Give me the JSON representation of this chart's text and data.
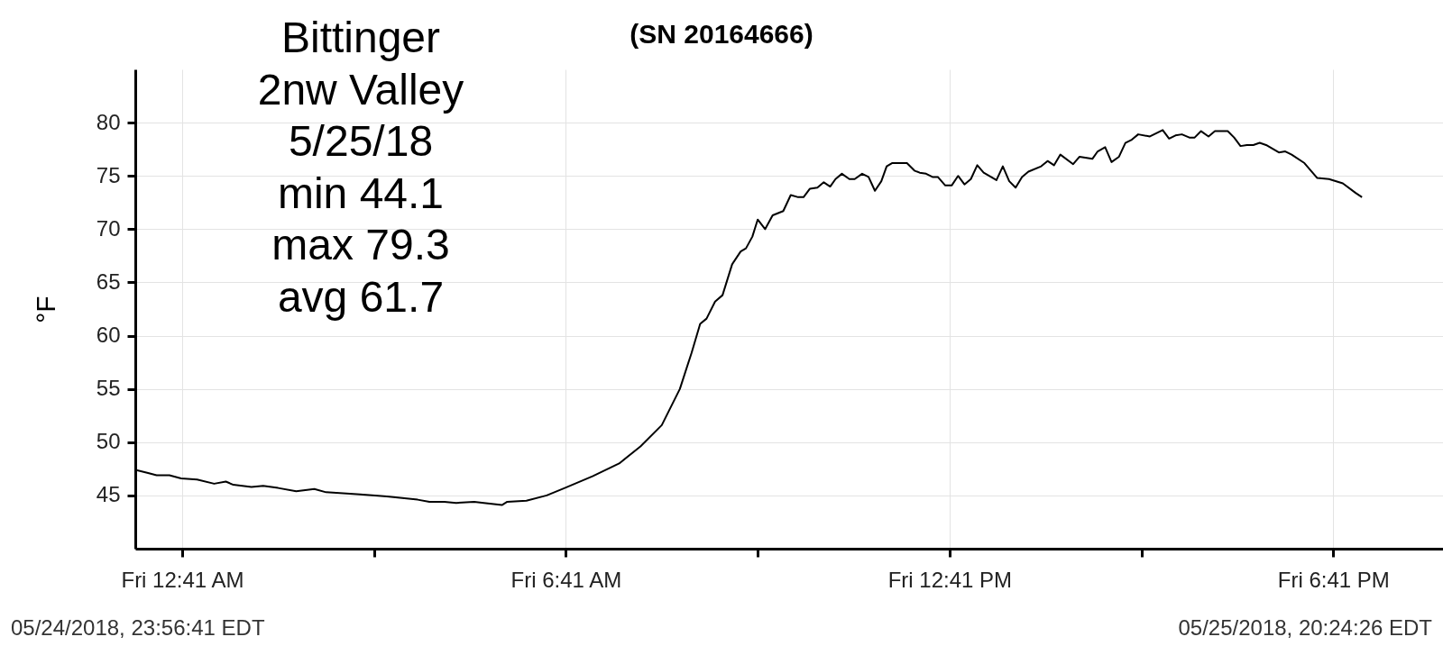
{
  "chart_data": {
    "type": "line",
    "title": "(SN 20164666)",
    "ylabel": "°F",
    "annotations": [
      "Bittinger\n2nw Valley\n5/25/18\nmin 44.1\nmax 79.3\navg 61.7",
      "05/24/2018, 23:56:41 EDT",
      "05/25/2018, 20:24:26 EDT"
    ],
    "x": [
      "2018-05-24T23:57",
      "2018-05-25T00:09",
      "2018-05-25T00:17",
      "2018-05-25T00:29",
      "2018-05-25T00:40",
      "2018-05-25T00:55",
      "2018-05-25T01:11",
      "2018-05-25T01:22",
      "2018-05-25T01:29",
      "2018-05-25T01:46",
      "2018-05-25T01:57",
      "2018-05-25T02:11",
      "2018-05-25T02:28",
      "2018-05-25T02:45",
      "2018-05-25T02:56",
      "2018-05-25T03:28",
      "2018-05-25T03:42",
      "2018-05-25T03:53",
      "2018-05-25T04:22",
      "2018-05-25T04:33",
      "2018-05-25T04:47",
      "2018-05-25T04:58",
      "2018-05-25T05:15",
      "2018-05-25T05:24",
      "2018-05-25T05:41",
      "2018-05-25T05:46",
      "2018-05-25T06:04",
      "2018-05-25T06:23",
      "2018-05-25T06:40",
      "2018-05-25T07:06",
      "2018-05-25T07:31",
      "2018-05-25T07:51",
      "2018-05-25T08:11",
      "2018-05-25T08:28",
      "2018-05-25T08:39",
      "2018-05-25T08:47",
      "2018-05-25T08:53",
      "2018-05-25T09:01",
      "2018-05-25T09:08",
      "2018-05-25T09:17",
      "2018-05-25T09:25",
      "2018-05-25T09:30",
      "2018-05-25T09:36",
      "2018-05-25T09:41",
      "2018-05-25T09:48",
      "2018-05-25T09:55",
      "2018-05-25T10:05",
      "2018-05-25T10:12",
      "2018-05-25T10:19",
      "2018-05-25T10:24",
      "2018-05-25T10:30",
      "2018-05-25T10:37",
      "2018-05-25T10:43",
      "2018-05-25T10:49",
      "2018-05-25T10:54",
      "2018-05-25T11:00",
      "2018-05-25T11:07",
      "2018-05-25T11:12",
      "2018-05-25T11:19",
      "2018-05-25T11:25",
      "2018-05-25T11:31",
      "2018-05-25T11:37",
      "2018-05-25T11:42",
      "2018-05-25T11:47",
      "2018-05-25T12:01",
      "2018-05-25T12:08",
      "2018-05-25T12:13",
      "2018-05-25T12:19",
      "2018-05-25T12:25",
      "2018-05-25T12:30",
      "2018-05-25T12:37",
      "2018-05-25T12:43",
      "2018-05-25T12:49",
      "2018-05-25T12:55",
      "2018-05-25T13:01",
      "2018-05-25T13:07",
      "2018-05-25T13:13",
      "2018-05-25T13:25",
      "2018-05-25T13:31",
      "2018-05-25T13:37",
      "2018-05-25T13:43",
      "2018-05-25T13:49",
      "2018-05-25T13:55",
      "2018-05-25T14:07",
      "2018-05-25T14:13",
      "2018-05-25T14:19",
      "2018-05-25T14:25",
      "2018-05-25T14:37",
      "2018-05-25T14:43",
      "2018-05-25T14:55",
      "2018-05-25T15:00",
      "2018-05-25T15:07",
      "2018-05-25T15:13",
      "2018-05-25T15:20",
      "2018-05-25T15:26",
      "2018-05-25T15:32",
      "2018-05-25T15:38",
      "2018-05-25T15:49",
      "2018-05-25T15:55",
      "2018-05-25T16:01",
      "2018-05-25T16:07",
      "2018-05-25T16:13",
      "2018-05-25T16:19",
      "2018-05-25T16:26",
      "2018-05-25T16:31",
      "2018-05-25T16:37",
      "2018-05-25T16:44",
      "2018-05-25T16:50",
      "2018-05-25T17:02",
      "2018-05-25T17:08",
      "2018-05-25T17:14",
      "2018-05-25T17:20",
      "2018-05-25T17:26",
      "2018-05-25T17:32",
      "2018-05-25T17:38",
      "2018-05-25T17:50",
      "2018-05-25T17:56",
      "2018-05-25T18:02",
      "2018-05-25T18:14",
      "2018-05-25T18:26",
      "2018-05-25T18:37",
      "2018-05-25T18:50",
      "2018-05-25T19:02",
      "2018-05-25T19:08"
    ],
    "values": [
      47.4,
      47.1,
      46.9,
      46.9,
      46.6,
      46.5,
      46.1,
      46.3,
      46.0,
      45.8,
      45.9,
      45.7,
      45.4,
      45.6,
      45.3,
      45.1,
      45.0,
      44.9,
      44.6,
      44.4,
      44.4,
      44.3,
      44.4,
      44.3,
      44.1,
      44.4,
      44.5,
      45.0,
      45.7,
      46.8,
      48.0,
      49.6,
      51.6,
      55.0,
      58.4,
      61.1,
      61.6,
      63.2,
      63.8,
      66.7,
      67.9,
      68.2,
      69.3,
      70.9,
      70.0,
      71.3,
      71.7,
      73.2,
      73.0,
      73.0,
      73.8,
      73.9,
      74.4,
      74.0,
      74.7,
      75.2,
      74.7,
      74.7,
      75.2,
      74.9,
      73.6,
      74.5,
      75.9,
      76.2,
      76.2,
      75.5,
      75.3,
      75.2,
      74.9,
      74.9,
      74.1,
      74.1,
      75.0,
      74.2,
      74.7,
      76.0,
      75.3,
      74.6,
      75.9,
      74.5,
      73.9,
      74.9,
      75.4,
      75.9,
      76.4,
      76.0,
      77.0,
      76.1,
      76.8,
      76.6,
      77.3,
      77.7,
      76.3,
      76.8,
      78.1,
      78.4,
      78.9,
      78.7,
      79.0,
      79.3,
      78.5,
      78.8,
      78.9,
      78.6,
      78.6,
      79.2,
      78.7,
      79.2,
      79.2,
      78.6,
      77.8,
      77.9,
      77.9,
      78.1,
      77.9,
      77.2,
      77.3,
      77.0,
      76.2,
      74.8,
      74.7,
      74.3,
      73.4,
      73.0
    ],
    "color": "#000000",
    "xlim": [
      "2018-05-24T23:57",
      "2018-05-25T20:24"
    ],
    "xticks": [
      {
        "value": "2018-05-25T00:41",
        "label": "Fri 12:41 AM"
      },
      {
        "value": "2018-05-25T03:41",
        "label": null
      },
      {
        "value": "2018-05-25T06:41",
        "label": "Fri 6:41 AM"
      },
      {
        "value": "2018-05-25T09:41",
        "label": null
      },
      {
        "value": "2018-05-25T12:41",
        "label": "Fri 12:41 PM"
      },
      {
        "value": "2018-05-25T15:41",
        "label": null
      },
      {
        "value": "2018-05-25T18:41",
        "label": "Fri 6:41 PM"
      }
    ],
    "ylim": [
      40,
      85
    ],
    "yticks": [
      45,
      50,
      55,
      60,
      65,
      70,
      75,
      80
    ],
    "grid": true
  }
}
